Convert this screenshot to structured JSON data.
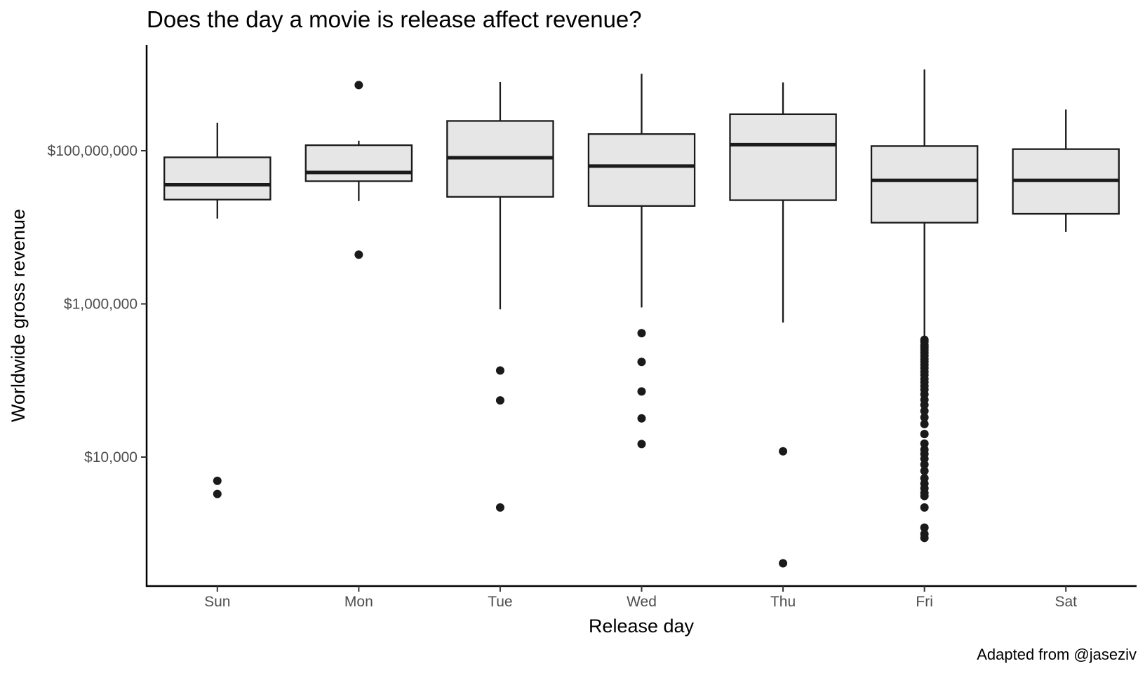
{
  "chart_data": {
    "type": "box",
    "title": "Does the day a movie is release affect revenue?",
    "xlabel": "Release day",
    "ylabel": "Worldwide gross revenue",
    "caption": "Adapted from @jaseziv",
    "y_scale": "log10",
    "ylim": [
      400,
      12000000000
    ],
    "y_ticks": [
      {
        "value": 10000,
        "label": "$10,000"
      },
      {
        "value": 1000000,
        "label": "$1,000,000"
      },
      {
        "value": 100000000,
        "label": "$100,000,000"
      }
    ],
    "grid": false,
    "legend": "none",
    "categories": [
      "Sun",
      "Mon",
      "Tue",
      "Wed",
      "Thu",
      "Fri",
      "Sat"
    ],
    "boxes": [
      {
        "day": "Sun",
        "whisker_low": 13000000,
        "q1": 23000000,
        "median": 36000000,
        "q3": 82000000,
        "whisker_high": 232000000,
        "outliers": [
          4900,
          3300
        ]
      },
      {
        "day": "Mon",
        "whisker_low": 22000000,
        "q1": 40000000,
        "median": 52000000,
        "q3": 118000000,
        "whisker_high": 135000000,
        "outliers": [
          720000000,
          4400000
        ]
      },
      {
        "day": "Tue",
        "whisker_low": 850000,
        "q1": 25000000,
        "median": 81000000,
        "q3": 245000000,
        "whisker_high": 790000000,
        "outliers": [
          135000,
          55000,
          2200
        ]
      },
      {
        "day": "Wed",
        "whisker_low": 900000,
        "q1": 19000000,
        "median": 63000000,
        "q3": 165000000,
        "whisker_high": 1010000000,
        "outliers": [
          415000,
          175000,
          72000,
          32000,
          14800
        ]
      },
      {
        "day": "Thu",
        "whisker_low": 570000,
        "q1": 22600000,
        "median": 120000000,
        "q3": 300000000,
        "whisker_high": 780000000,
        "outliers": [
          11900,
          410
        ]
      },
      {
        "day": "Fri",
        "whisker_low": 340000,
        "q1": 11500000,
        "median": 41000000,
        "q3": 115000000,
        "whisker_high": 1150000000,
        "outliers": [
          340000,
          320000,
          290000,
          270000,
          250000,
          230000,
          210000,
          190000,
          175000,
          160000,
          145000,
          130000,
          118000,
          105000,
          95000,
          85000,
          76000,
          66000,
          56000,
          48000,
          40000,
          33000,
          27000,
          20000,
          15000,
          12500,
          11000,
          9500,
          8000,
          6600,
          5300,
          4500,
          3900,
          3400,
          3100,
          2200,
          1200,
          990,
          880
        ]
      },
      {
        "day": "Sat",
        "whisker_low": 8700000,
        "q1": 15000000,
        "median": 41000000,
        "q3": 105000000,
        "whisker_high": 345000000,
        "outliers": []
      }
    ]
  }
}
